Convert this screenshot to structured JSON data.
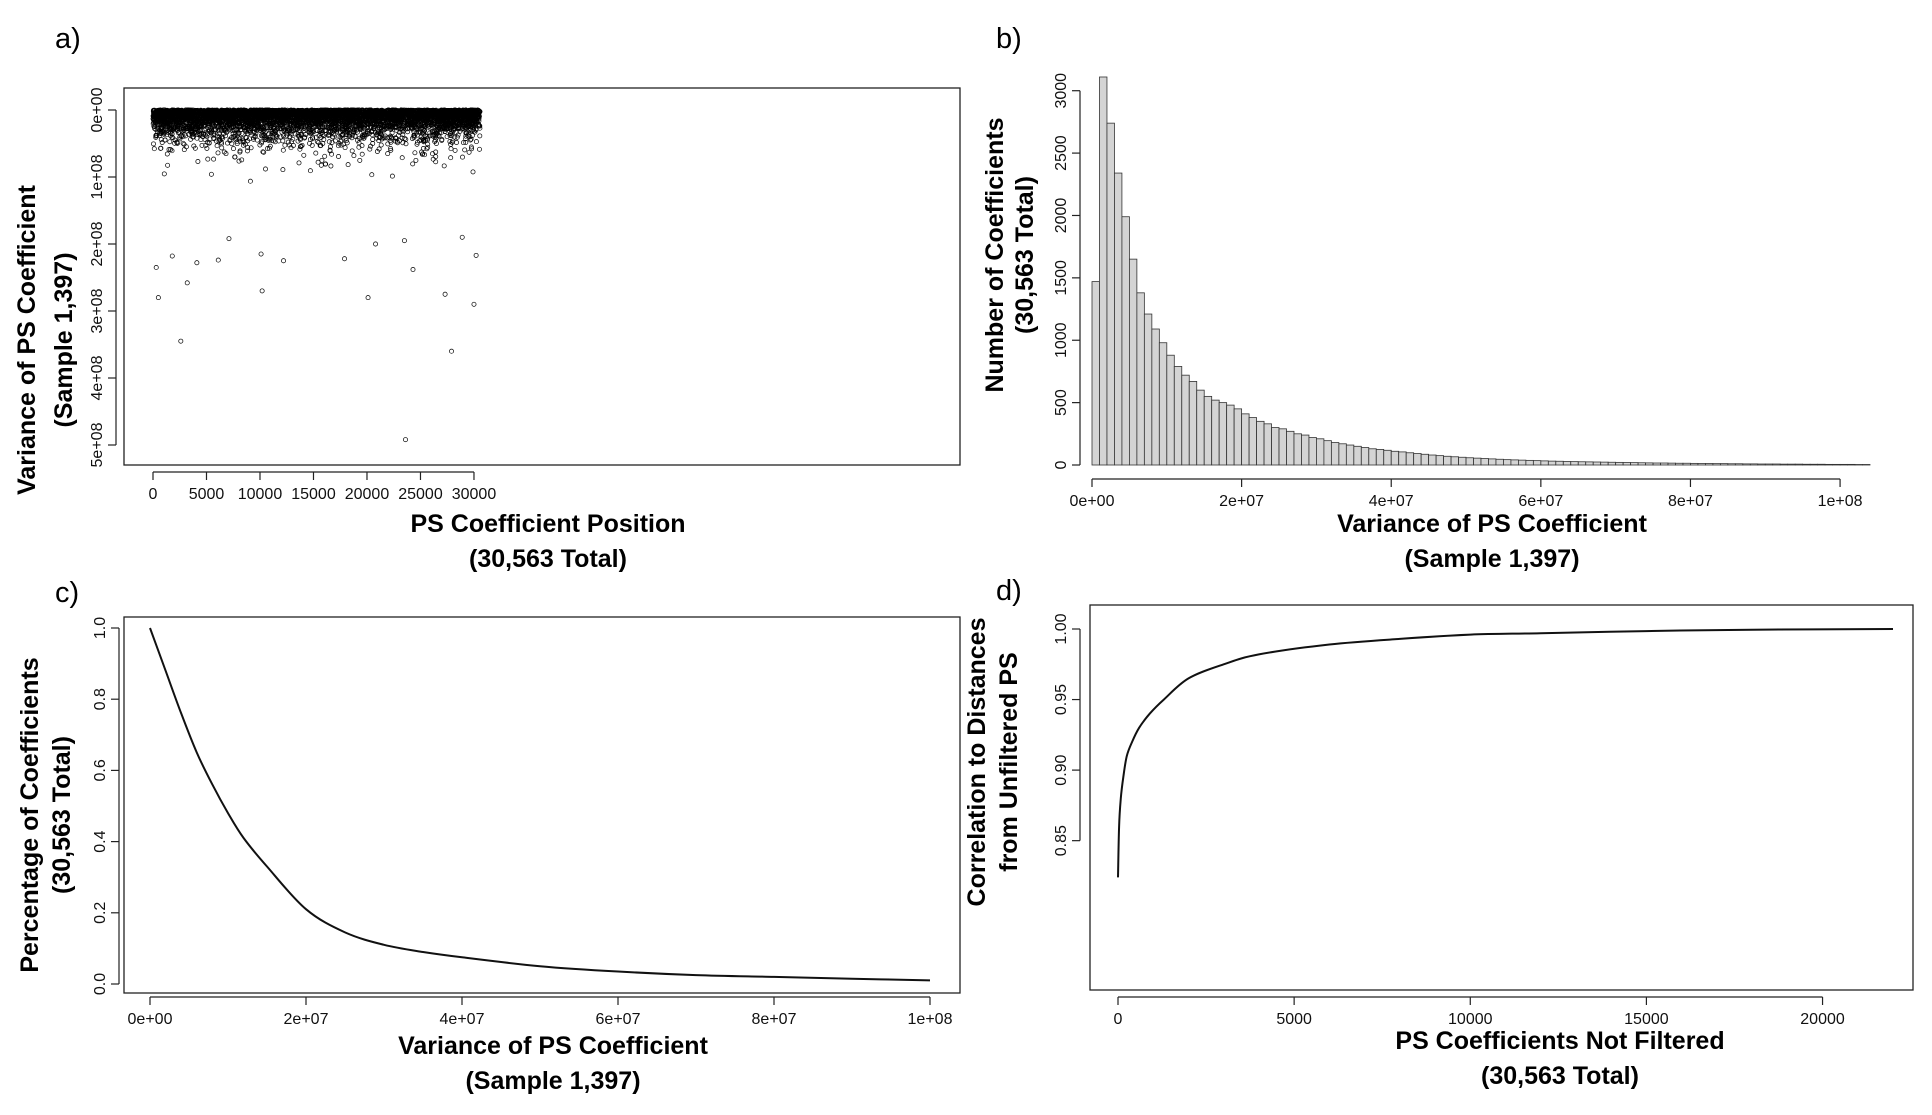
{
  "chart_data": [
    {
      "panel_label": "a)",
      "type": "scatter",
      "xlabel": [
        "PS Coefficient Position",
        "(30,563 Total)"
      ],
      "ylabel": [
        "Variance of PS Coefficient",
        "(Sample 1,397)"
      ],
      "xlim": [
        0,
        30563
      ],
      "ylim": [
        0,
        500000000
      ],
      "x_ticks": [
        0,
        5000,
        10000,
        15000,
        20000,
        25000,
        30000
      ],
      "x_tick_labels": [
        "0",
        "5000",
        "10000",
        "15000",
        "20000",
        "25000",
        "30000"
      ],
      "y_ticks": [
        0,
        100000000,
        200000000,
        300000000,
        400000000,
        500000000
      ],
      "y_tick_labels": [
        "0e+00",
        "1e+08",
        "2e+08",
        "3e+08",
        "4e+08",
        "5e+08"
      ],
      "marker": "open-circle",
      "n_points": 30563,
      "highlighted_points": [
        {
          "x": 23600,
          "y": 492000000
        },
        {
          "x": 27900,
          "y": 360000000
        },
        {
          "x": 2600,
          "y": 345000000
        },
        {
          "x": 30000,
          "y": 290000000
        },
        {
          "x": 500,
          "y": 280000000
        },
        {
          "x": 20100,
          "y": 280000000
        },
        {
          "x": 10200,
          "y": 270000000
        },
        {
          "x": 27300,
          "y": 275000000
        },
        {
          "x": 3200,
          "y": 258000000
        },
        {
          "x": 300,
          "y": 235000000
        },
        {
          "x": 24300,
          "y": 238000000
        },
        {
          "x": 4100,
          "y": 228000000
        },
        {
          "x": 12200,
          "y": 225000000
        },
        {
          "x": 6100,
          "y": 224000000
        },
        {
          "x": 17900,
          "y": 222000000
        },
        {
          "x": 1800,
          "y": 218000000
        },
        {
          "x": 10100,
          "y": 215000000
        },
        {
          "x": 30200,
          "y": 217000000
        },
        {
          "x": 20800,
          "y": 200000000
        },
        {
          "x": 7100,
          "y": 192000000
        },
        {
          "x": 23500,
          "y": 195000000
        },
        {
          "x": 28900,
          "y": 190000000
        }
      ]
    },
    {
      "panel_label": "b)",
      "type": "bar",
      "subtype": "histogram",
      "xlabel": [
        "Variance of PS Coefficient",
        "(Sample 1,397)"
      ],
      "ylabel": [
        "Number of Coefficients",
        "(30,563 Total)"
      ],
      "xlim": [
        0,
        104000000
      ],
      "ylim": [
        0,
        3150
      ],
      "x_ticks": [
        0,
        20000000,
        40000000,
        60000000,
        80000000,
        100000000
      ],
      "x_tick_labels": [
        "0e+00",
        "2e+07",
        "4e+07",
        "6e+07",
        "8e+07",
        "1e+08"
      ],
      "y_ticks": [
        0,
        500,
        1000,
        1500,
        2000,
        2500,
        3000
      ],
      "y_tick_labels": [
        "0",
        "500",
        "1000",
        "1500",
        "2000",
        "2500",
        "3000"
      ],
      "bin_width": 1000000,
      "values": [
        1470,
        3110,
        2740,
        2340,
        1990,
        1650,
        1380,
        1210,
        1090,
        980,
        880,
        790,
        720,
        670,
        600,
        550,
        520,
        500,
        480,
        450,
        410,
        380,
        350,
        330,
        300,
        290,
        270,
        250,
        240,
        220,
        210,
        195,
        180,
        170,
        160,
        150,
        140,
        130,
        125,
        118,
        110,
        105,
        98,
        92,
        86,
        80,
        75,
        70,
        66,
        62,
        58,
        55,
        52,
        49,
        46,
        43,
        41,
        39,
        37,
        35,
        33,
        31,
        30,
        28,
        27,
        26,
        25,
        24,
        23,
        22,
        21,
        20,
        19,
        18,
        17,
        16,
        16,
        15,
        14,
        14,
        13,
        12,
        12,
        11,
        11,
        10,
        10,
        9,
        9,
        8,
        8,
        8,
        7,
        7,
        7,
        6,
        6,
        6,
        5,
        5,
        5,
        5,
        4,
        4
      ]
    },
    {
      "panel_label": "c)",
      "type": "line",
      "xlabel": [
        "Variance of PS Coefficient",
        "(Sample 1,397)"
      ],
      "ylabel": [
        "Percentage of Coefficients",
        "(30,563 Total)"
      ],
      "xlim": [
        0,
        100000000
      ],
      "ylim": [
        0,
        1.0
      ],
      "x_ticks": [
        0,
        20000000,
        40000000,
        60000000,
        80000000,
        100000000
      ],
      "x_tick_labels": [
        "0e+00",
        "2e+07",
        "4e+07",
        "6e+07",
        "8e+07",
        "1e+08"
      ],
      "y_ticks": [
        0,
        0.2,
        0.4,
        0.6,
        0.8,
        1.0
      ],
      "y_tick_labels": [
        "0.0",
        "0.2",
        "0.4",
        "0.6",
        "0.8",
        "1.0"
      ],
      "x": [
        0,
        2000000,
        4000000,
        6000000,
        8000000,
        10000000,
        12000000,
        15000000,
        20000000,
        25000000,
        30000000,
        35000000,
        40000000,
        50000000,
        60000000,
        70000000,
        80000000,
        90000000,
        100000000
      ],
      "y": [
        1.0,
        0.88,
        0.76,
        0.65,
        0.56,
        0.48,
        0.41,
        0.33,
        0.21,
        0.145,
        0.11,
        0.09,
        0.075,
        0.05,
        0.035,
        0.025,
        0.02,
        0.015,
        0.01
      ]
    },
    {
      "panel_label": "d)",
      "type": "line",
      "xlabel": [
        "PS Coefficients Not Filtered",
        "(30,563 Total)"
      ],
      "ylabel": [
        "Correlation to Distances",
        "from Unfiltered PS"
      ],
      "xlim": [
        0,
        22000
      ],
      "ylim": [
        0.82,
        1.0
      ],
      "x_ticks": [
        0,
        5000,
        10000,
        15000,
        20000
      ],
      "x_tick_labels": [
        "0",
        "5000",
        "10000",
        "15000",
        "20000"
      ],
      "y_ticks": [
        0.85,
        0.9,
        0.95,
        1.0
      ],
      "y_tick_labels": [
        "0.85",
        "0.90",
        "0.95",
        "1.00"
      ],
      "x": [
        0,
        30,
        80,
        150,
        250,
        400,
        600,
        900,
        1300,
        2000,
        3000,
        4000,
        6000,
        8000,
        10000,
        12000,
        15000,
        18000,
        22000
      ],
      "y": [
        0.824,
        0.86,
        0.88,
        0.895,
        0.91,
        0.92,
        0.93,
        0.94,
        0.95,
        0.965,
        0.975,
        0.982,
        0.989,
        0.993,
        0.996,
        0.997,
        0.9985,
        0.9995,
        1.0
      ]
    }
  ]
}
